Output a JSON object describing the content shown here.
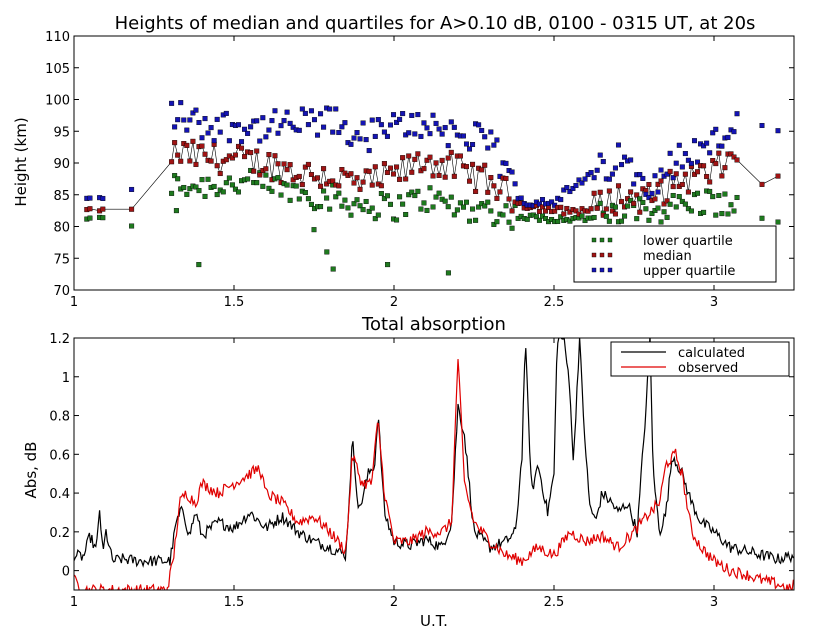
{
  "chart_data": [
    {
      "type": "scatter",
      "title": "Heights of median and quartiles for A>0.10 dB, 0100 - 0315 UT, at 20s",
      "xlabel": "",
      "ylabel": "Height (km)",
      "xlim": [
        1,
        3.25
      ],
      "ylim": [
        70,
        110
      ],
      "xticks": [
        1,
        1.5,
        2,
        2.5,
        3
      ],
      "xtick_labels": [
        "1",
        "1.5",
        "2",
        "2.5",
        "3"
      ],
      "yticks": [
        70,
        75,
        80,
        85,
        90,
        95,
        100,
        105,
        110
      ],
      "ytick_labels": [
        "70",
        "75",
        "80",
        "85",
        "90",
        "95",
        "100",
        "105",
        "110"
      ],
      "legend_position": "lower-right",
      "series": [
        {
          "name": "lower quartile",
          "color": "#1e7a1e",
          "marker": "square"
        },
        {
          "name": "median",
          "color": "#a01414",
          "marker": "square",
          "connected": true
        },
        {
          "name": "upper quartile",
          "color": "#1414b4",
          "marker": "square"
        }
      ],
      "median_outline": [
        [
          1.0,
          82.6
        ],
        [
          1.18,
          82.6
        ],
        [
          1.3,
          91.5
        ],
        [
          1.4,
          91.0
        ],
        [
          1.5,
          90.5
        ],
        [
          1.6,
          90.0
        ],
        [
          1.7,
          88.5
        ],
        [
          1.8,
          88.0
        ],
        [
          1.9,
          86.5
        ],
        [
          2.0,
          88.0
        ],
        [
          2.1,
          90.5
        ],
        [
          2.2,
          89.0
        ],
        [
          2.3,
          87.0
        ],
        [
          2.4,
          83.5
        ],
        [
          2.5,
          82.5
        ],
        [
          2.6,
          82.5
        ],
        [
          2.7,
          84.5
        ],
        [
          2.8,
          84.5
        ],
        [
          2.9,
          87.5
        ],
        [
          3.0,
          88.5
        ],
        [
          3.08,
          92.0
        ],
        [
          3.15,
          86.7
        ],
        [
          3.2,
          87.8
        ]
      ],
      "lower_outline": [
        [
          1.0,
          81.2
        ],
        [
          1.1,
          81.3
        ],
        [
          1.18,
          80.2
        ],
        [
          1.3,
          86.5
        ],
        [
          1.4,
          86.5
        ],
        [
          1.5,
          86.8
        ],
        [
          1.6,
          86.5
        ],
        [
          1.7,
          85.5
        ],
        [
          1.8,
          84.5
        ],
        [
          1.9,
          83.5
        ],
        [
          2.0,
          83.0
        ],
        [
          2.1,
          84.5
        ],
        [
          2.2,
          83.0
        ],
        [
          2.3,
          82.5
        ],
        [
          2.4,
          81.5
        ],
        [
          2.5,
          81.2
        ],
        [
          2.6,
          81.3
        ],
        [
          2.7,
          82.0
        ],
        [
          2.8,
          82.5
        ],
        [
          2.9,
          83.5
        ],
        [
          3.0,
          84.0
        ],
        [
          3.08,
          82.5
        ],
        [
          3.2,
          80.7
        ]
      ],
      "upper_outline": [
        [
          1.0,
          84.3
        ],
        [
          1.1,
          84.5
        ],
        [
          1.18,
          85.8
        ],
        [
          1.3,
          98.0
        ],
        [
          1.4,
          96.0
        ],
        [
          1.5,
          96.0
        ],
        [
          1.6,
          95.5
        ],
        [
          1.7,
          96.0
        ],
        [
          1.8,
          96.5
        ],
        [
          1.9,
          94.0
        ],
        [
          2.0,
          95.5
        ],
        [
          2.1,
          96.5
        ],
        [
          2.2,
          94.5
        ],
        [
          2.3,
          93.0
        ],
        [
          2.4,
          84.0
        ],
        [
          2.5,
          84.0
        ],
        [
          2.6,
          87.5
        ],
        [
          2.7,
          90.5
        ],
        [
          2.8,
          87.0
        ],
        [
          2.9,
          91.0
        ],
        [
          3.0,
          93.0
        ],
        [
          3.08,
          97.0
        ],
        [
          3.2,
          95.0
        ]
      ],
      "outliers_lower": [
        [
          1.32,
          82.5
        ],
        [
          1.39,
          74.0
        ],
        [
          1.75,
          79.5
        ],
        [
          1.79,
          76.0
        ],
        [
          1.81,
          73.3
        ],
        [
          1.98,
          74.0
        ],
        [
          2.17,
          72.7
        ]
      ]
    },
    {
      "type": "line",
      "title": "Total absorption",
      "xlabel": "U.T.",
      "ylabel": "Abs, dB",
      "xlim": [
        1,
        3.25
      ],
      "ylim": [
        -0.1,
        1.2
      ],
      "xticks": [
        1,
        1.5,
        2,
        2.5,
        3
      ],
      "xtick_labels": [
        "1",
        "1.5",
        "2",
        "2.5",
        "3"
      ],
      "yticks": [
        0,
        0.2,
        0.4,
        0.6,
        0.8,
        1,
        1.2
      ],
      "ytick_labels": [
        "0",
        "0.2",
        "0.4",
        "0.6",
        "0.8",
        "1",
        "1.2"
      ],
      "legend_position": "top-right",
      "series": [
        {
          "name": "calculated",
          "color": "#000000",
          "points": [
            [
              1.0,
              0.08
            ],
            [
              1.03,
              0.07
            ],
            [
              1.05,
              0.18
            ],
            [
              1.07,
              0.1
            ],
            [
              1.08,
              0.32
            ],
            [
              1.09,
              0.08
            ],
            [
              1.1,
              0.2
            ],
            [
              1.12,
              0.05
            ],
            [
              1.15,
              0.06
            ],
            [
              1.2,
              0.05
            ],
            [
              1.25,
              0.05
            ],
            [
              1.3,
              0.05
            ],
            [
              1.32,
              0.25
            ],
            [
              1.34,
              0.32
            ],
            [
              1.36,
              0.18
            ],
            [
              1.38,
              0.3
            ],
            [
              1.4,
              0.18
            ],
            [
              1.45,
              0.25
            ],
            [
              1.5,
              0.22
            ],
            [
              1.55,
              0.3
            ],
            [
              1.6,
              0.22
            ],
            [
              1.65,
              0.28
            ],
            [
              1.7,
              0.2
            ],
            [
              1.75,
              0.15
            ],
            [
              1.8,
              0.12
            ],
            [
              1.85,
              0.08
            ],
            [
              1.87,
              0.68
            ],
            [
              1.89,
              0.3
            ],
            [
              1.92,
              0.5
            ],
            [
              1.94,
              0.55
            ],
            [
              1.95,
              0.82
            ],
            [
              1.97,
              0.3
            ],
            [
              2.0,
              0.15
            ],
            [
              2.05,
              0.13
            ],
            [
              2.1,
              0.16
            ],
            [
              2.15,
              0.12
            ],
            [
              2.18,
              0.25
            ],
            [
              2.2,
              0.85
            ],
            [
              2.22,
              0.7
            ],
            [
              2.25,
              0.2
            ],
            [
              2.3,
              0.12
            ],
            [
              2.35,
              0.15
            ],
            [
              2.38,
              0.2
            ],
            [
              2.4,
              0.6
            ],
            [
              2.41,
              1.2
            ],
            [
              2.43,
              0.4
            ],
            [
              2.45,
              0.55
            ],
            [
              2.48,
              0.3
            ],
            [
              2.5,
              0.5
            ],
            [
              2.51,
              1.2
            ],
            [
              2.53,
              1.2
            ],
            [
              2.55,
              0.95
            ],
            [
              2.56,
              0.55
            ],
            [
              2.58,
              1.2
            ],
            [
              2.59,
              0.85
            ],
            [
              2.61,
              0.35
            ],
            [
              2.63,
              0.25
            ],
            [
              2.65,
              0.4
            ],
            [
              2.68,
              0.35
            ],
            [
              2.7,
              0.3
            ],
            [
              2.73,
              0.35
            ],
            [
              2.76,
              0.2
            ],
            [
              2.79,
              0.9
            ],
            [
              2.8,
              1.2
            ],
            [
              2.81,
              0.5
            ],
            [
              2.83,
              0.2
            ],
            [
              2.85,
              0.3
            ],
            [
              2.87,
              0.6
            ],
            [
              2.9,
              0.5
            ],
            [
              2.93,
              0.35
            ],
            [
              2.96,
              0.25
            ],
            [
              3.0,
              0.2
            ],
            [
              3.05,
              0.12
            ],
            [
              3.1,
              0.1
            ],
            [
              3.15,
              0.08
            ],
            [
              3.2,
              0.06
            ],
            [
              3.25,
              0.08
            ]
          ]
        },
        {
          "name": "observed",
          "color": "#e00000",
          "points": [
            [
              1.0,
              -0.05
            ],
            [
              1.02,
              -0.08
            ],
            [
              1.04,
              -0.1
            ],
            [
              1.29,
              -0.1
            ],
            [
              1.31,
              0.05
            ],
            [
              1.33,
              0.35
            ],
            [
              1.35,
              0.4
            ],
            [
              1.38,
              0.35
            ],
            [
              1.4,
              0.45
            ],
            [
              1.45,
              0.4
            ],
            [
              1.5,
              0.45
            ],
            [
              1.55,
              0.5
            ],
            [
              1.58,
              0.53
            ],
            [
              1.6,
              0.4
            ],
            [
              1.65,
              0.35
            ],
            [
              1.7,
              0.25
            ],
            [
              1.75,
              0.28
            ],
            [
              1.8,
              0.2
            ],
            [
              1.85,
              0.1
            ],
            [
              1.87,
              0.6
            ],
            [
              1.9,
              0.45
            ],
            [
              1.93,
              0.45
            ],
            [
              1.95,
              0.78
            ],
            [
              1.97,
              0.4
            ],
            [
              2.0,
              0.15
            ],
            [
              2.05,
              0.15
            ],
            [
              2.1,
              0.2
            ],
            [
              2.15,
              0.2
            ],
            [
              2.18,
              0.25
            ],
            [
              2.2,
              1.1
            ],
            [
              2.22,
              0.45
            ],
            [
              2.25,
              0.25
            ],
            [
              2.3,
              0.15
            ],
            [
              2.35,
              0.08
            ],
            [
              2.4,
              0.05
            ],
            [
              2.45,
              0.12
            ],
            [
              2.5,
              0.08
            ],
            [
              2.55,
              0.2
            ],
            [
              2.6,
              0.15
            ],
            [
              2.65,
              0.18
            ],
            [
              2.7,
              0.12
            ],
            [
              2.75,
              0.2
            ],
            [
              2.8,
              0.3
            ],
            [
              2.83,
              0.35
            ],
            [
              2.85,
              0.55
            ],
            [
              2.88,
              0.6
            ],
            [
              2.9,
              0.5
            ],
            [
              2.93,
              0.2
            ],
            [
              2.96,
              0.12
            ],
            [
              3.0,
              0.05
            ],
            [
              3.05,
              0.0
            ],
            [
              3.1,
              -0.02
            ],
            [
              3.15,
              -0.05
            ],
            [
              3.2,
              -0.07
            ],
            [
              3.24,
              -0.1
            ],
            [
              3.25,
              -0.05
            ]
          ]
        }
      ]
    }
  ]
}
